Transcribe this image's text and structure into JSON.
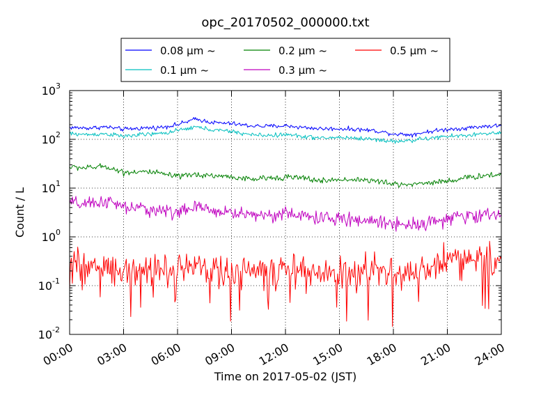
{
  "chart_data": {
    "type": "line",
    "title": "opc_20170502_000000.txt",
    "xlabel": "Time on 2017-05-02 (JST)",
    "ylabel": "Count / L",
    "yscale": "log",
    "ylim": [
      0.01,
      1000
    ],
    "xlim": [
      "00:00",
      "24:00"
    ],
    "x_tick_labels": [
      "00:00",
      "03:00",
      "06:00",
      "09:00",
      "12:00",
      "15:00",
      "18:00",
      "21:00",
      "24:00"
    ],
    "y_tick_labels": [
      {
        "base": "10",
        "exp": "-2"
      },
      {
        "base": "10",
        "exp": "-1"
      },
      {
        "base": "10",
        "exp": "0"
      },
      {
        "base": "10",
        "exp": "1"
      },
      {
        "base": "10",
        "exp": "2"
      },
      {
        "base": "10",
        "exp": "3"
      }
    ],
    "grid": true,
    "legend_position": "top-center",
    "x_hours": [
      0,
      1,
      2,
      3,
      4,
      5,
      6,
      7,
      8,
      9,
      10,
      11,
      12,
      13,
      14,
      15,
      16,
      17,
      18,
      19,
      20,
      21,
      22,
      23,
      24
    ],
    "series": [
      {
        "name": "0.08 μm ~",
        "color": "#0000ff",
        "values": [
          175,
          170,
          180,
          160,
          170,
          175,
          200,
          260,
          220,
          210,
          190,
          185,
          190,
          175,
          165,
          165,
          160,
          150,
          130,
          125,
          145,
          160,
          170,
          185,
          190
        ]
      },
      {
        "name": "0.1 μm ~",
        "color": "#00bfbf",
        "values": [
          130,
          125,
          130,
          115,
          125,
          130,
          150,
          180,
          155,
          145,
          125,
          120,
          125,
          115,
          105,
          110,
          105,
          100,
          90,
          95,
          105,
          115,
          120,
          130,
          135
        ]
      },
      {
        "name": "0.2 μm ~",
        "color": "#008000",
        "values": [
          27,
          26,
          28,
          21,
          22,
          20,
          17,
          19,
          18,
          17,
          15,
          16,
          17,
          16,
          14,
          15,
          15,
          14,
          12,
          12,
          13,
          14,
          16,
          18,
          19
        ]
      },
      {
        "name": "0.3 μm ~",
        "color": "#bf00bf",
        "values": [
          5.0,
          4.5,
          5.5,
          4.0,
          3.8,
          3.5,
          3.2,
          4.0,
          3.5,
          3.1,
          2.9,
          2.8,
          3.0,
          2.7,
          2.4,
          2.3,
          2.2,
          2.1,
          1.9,
          1.8,
          2.0,
          2.3,
          2.6,
          2.8,
          3.0
        ]
      },
      {
        "name": "0.5 μm ~",
        "color": "#ff0000",
        "values": [
          0.28,
          0.22,
          0.25,
          0.2,
          0.22,
          0.24,
          0.2,
          0.27,
          0.22,
          0.2,
          0.19,
          0.18,
          0.2,
          0.2,
          0.17,
          0.17,
          0.18,
          0.2,
          0.17,
          0.17,
          0.23,
          0.35,
          0.4,
          0.35,
          0.28
        ]
      }
    ]
  }
}
